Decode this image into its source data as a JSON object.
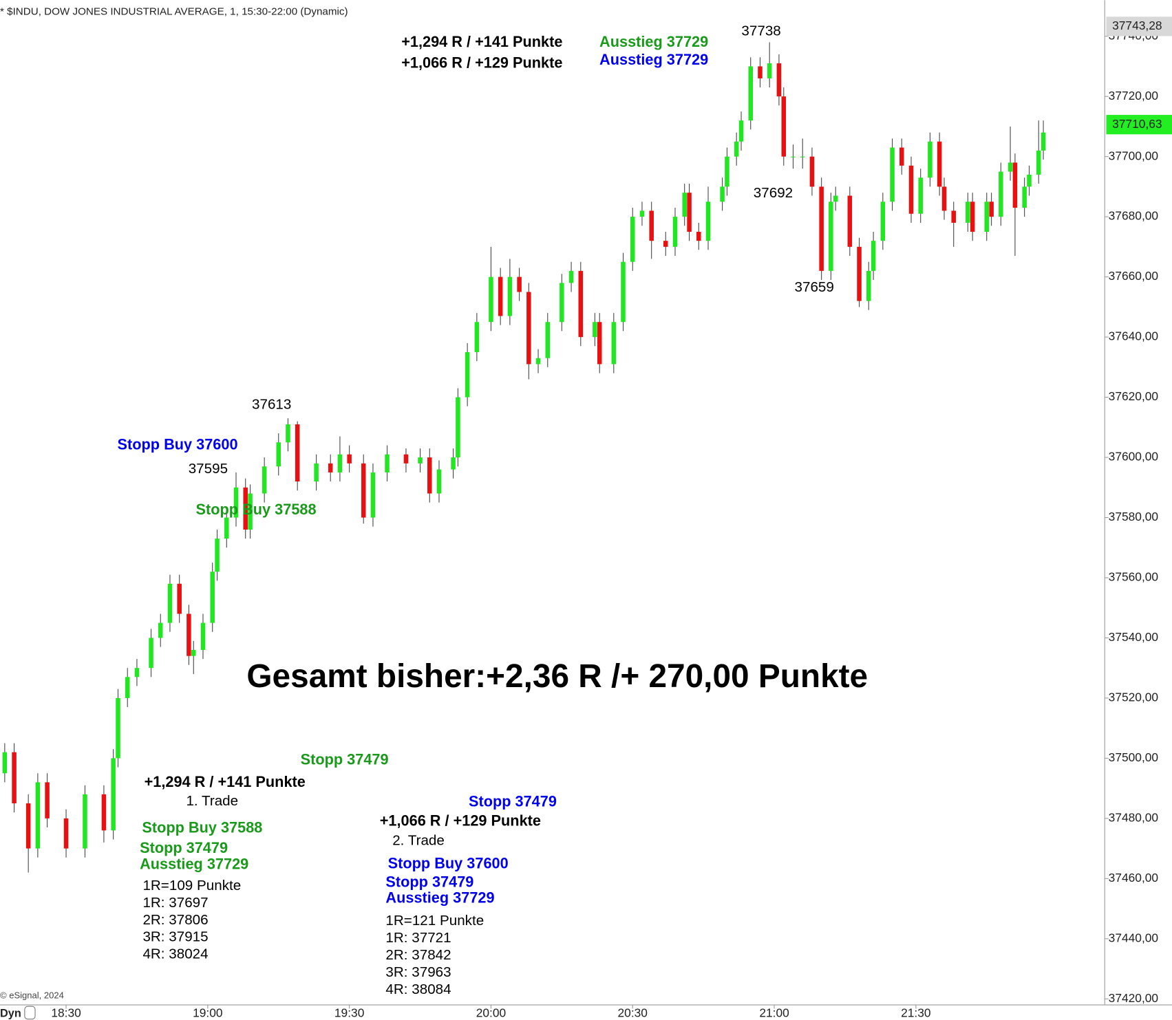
{
  "chart_data": {
    "type": "candlestick",
    "title": "* $INDU, DOW JONES INDUSTRIAL AVERAGE, 1, 15:30-22:00 (Dynamic)",
    "footer": "© eSignal, 2024",
    "mode_label": "Dyn",
    "up_color": "#22e622",
    "down_color": "#e81010",
    "xlim": [
      "18:16",
      "22:10"
    ],
    "xticks": [
      "18:30",
      "19:00",
      "19:30",
      "20:00",
      "20:30",
      "21:00",
      "21:30"
    ],
    "ylim": [
      37418,
      37752
    ],
    "yticks": [
      {
        "value": 37420,
        "label": "37420,00"
      },
      {
        "value": 37440,
        "label": "37440,00"
      },
      {
        "value": 37460,
        "label": "37460,00"
      },
      {
        "value": 37480,
        "label": "37480,00"
      },
      {
        "value": 37500,
        "label": "37500,00"
      },
      {
        "value": 37520,
        "label": "37520,00"
      },
      {
        "value": 37540,
        "label": "37540,00"
      },
      {
        "value": 37560,
        "label": "37560,00"
      },
      {
        "value": 37580,
        "label": "37580,00"
      },
      {
        "value": 37600,
        "label": "37600,00"
      },
      {
        "value": 37620,
        "label": "37620,00"
      },
      {
        "value": 37640,
        "label": "37640,00"
      },
      {
        "value": 37660,
        "label": "37660,00"
      },
      {
        "value": 37680,
        "label": "37680,00"
      },
      {
        "value": 37700,
        "label": "37700,00"
      },
      {
        "value": 37720,
        "label": "37720,00"
      },
      {
        "value": 37740,
        "label": "37740,00"
      }
    ],
    "price_marks": [
      {
        "value": 37743.28,
        "label": "37743,28",
        "color": "#d8d8d8"
      },
      {
        "value": 37710.63,
        "label": "37710,63",
        "color": "#22ee22"
      }
    ],
    "x": [
      "18:17",
      "18:19",
      "18:22",
      "18:24",
      "18:26",
      "18:30",
      "18:34",
      "18:38",
      "18:40",
      "18:41",
      "18:43",
      "18:45",
      "18:48",
      "18:50",
      "18:52",
      "18:54",
      "18:56",
      "18:57",
      "18:59",
      "19:01",
      "19:02",
      "19:04",
      "19:06",
      "19:08",
      "19:09",
      "19:12",
      "19:15",
      "19:17",
      "19:19",
      "19:23",
      "19:26",
      "19:28",
      "19:30",
      "19:33",
      "19:35",
      "19:38",
      "19:42",
      "19:45",
      "19:47",
      "19:49",
      "19:52",
      "19:53",
      "19:55",
      "19:57",
      "20:00",
      "20:02",
      "20:04",
      "20:06",
      "20:08",
      "20:10",
      "20:12",
      "20:15",
      "20:17",
      "20:19",
      "20:22",
      "20:23",
      "20:26",
      "20:28",
      "20:30",
      "20:32",
      "20:34",
      "20:37",
      "20:39",
      "20:41",
      "20:42",
      "20:44",
      "20:46",
      "20:49",
      "20:50",
      "20:52",
      "20:53",
      "20:55",
      "20:57",
      "20:59",
      "21:01",
      "21:02",
      "21:04",
      "21:06",
      "21:08",
      "21:10",
      "21:12",
      "21:13",
      "21:16",
      "21:18",
      "21:20",
      "21:21",
      "21:23",
      "21:25",
      "21:27",
      "21:29",
      "21:31",
      "21:33",
      "21:35",
      "21:36",
      "21:38",
      "21:41",
      "21:42",
      "21:45",
      "21:46",
      "21:48",
      "21:50",
      "21:51",
      "21:53",
      "21:54",
      "21:56",
      "21:57"
    ],
    "open": [
      37495,
      37502,
      37485,
      37470,
      37492,
      37480,
      37470,
      37488,
      37476,
      37500,
      37520,
      37527,
      37530,
      37540,
      37545,
      37558,
      37548,
      37534,
      37536,
      37545,
      37562,
      37573,
      37580,
      37590,
      37576,
      37588,
      37597,
      37605,
      37611,
      37592,
      37598,
      37595,
      37601,
      37598,
      37580,
      37595,
      37601,
      37598,
      37600,
      37588,
      37596,
      37600,
      37620,
      37635,
      37645,
      37660,
      37647,
      37660,
      37655,
      37631,
      37633,
      37645,
      37658,
      37662,
      37640,
      37645,
      37631,
      37645,
      37665,
      37680,
      37682,
      37672,
      37670,
      37680,
      37688,
      37675,
      37672,
      37685,
      37690,
      37700,
      37705,
      37712,
      37730,
      37726,
      37731,
      37720,
      37700,
      37700,
      37700,
      37690,
      37662,
      37685,
      37687,
      37670,
      37652,
      37662,
      37672,
      37685,
      37703,
      37697,
      37681,
      37693,
      37705,
      37690,
      37682,
      37678,
      37685,
      37675,
      37685,
      37680,
      37695,
      37698,
      37683,
      37690,
      37694,
      37702
    ],
    "high": [
      37505,
      37505,
      37488,
      37495,
      37495,
      37483,
      37491,
      37491,
      37503,
      37523,
      37530,
      37533,
      37543,
      37548,
      37561,
      37561,
      37551,
      37539,
      37548,
      37565,
      37576,
      37583,
      37595,
      37593,
      37591,
      37600,
      37608,
      37613,
      37612,
      37601,
      37601,
      37607,
      37604,
      37601,
      37598,
      37604,
      37603,
      37603,
      37603,
      37599,
      37603,
      37623,
      37638,
      37648,
      37670,
      37663,
      37666,
      37663,
      37658,
      37636,
      37648,
      37661,
      37665,
      37665,
      37648,
      37648,
      37648,
      37668,
      37683,
      37685,
      37685,
      37675,
      37683,
      37691,
      37691,
      37678,
      37690,
      37693,
      37703,
      37708,
      37715,
      37733,
      37733,
      37738,
      37734,
      37723,
      37704,
      37706,
      37703,
      37693,
      37688,
      37690,
      37690,
      37673,
      37665,
      37675,
      37688,
      37706,
      37706,
      37700,
      37696,
      37708,
      37708,
      37693,
      37685,
      37688,
      37688,
      37688,
      37688,
      37698,
      37710,
      37701,
      37693,
      37697,
      37712,
      37712
    ],
    "low": [
      37492,
      37482,
      37462,
      37467,
      37477,
      37467,
      37467,
      37472,
      37473,
      37497,
      37517,
      37524,
      37527,
      37537,
      37542,
      37545,
      37531,
      37528,
      37533,
      37542,
      37559,
      37570,
      37577,
      37573,
      37573,
      37585,
      37594,
      37602,
      37589,
      37589,
      37592,
      37592,
      37595,
      37578,
      37577,
      37592,
      37595,
      37595,
      37585,
      37585,
      37593,
      37597,
      37617,
      37632,
      37642,
      37644,
      37644,
      37652,
      37626,
      37628,
      37630,
      37642,
      37655,
      37637,
      37637,
      37628,
      37628,
      37642,
      37662,
      37677,
      37666,
      37667,
      37667,
      37677,
      37672,
      37669,
      37669,
      37682,
      37687,
      37697,
      37702,
      37709,
      37723,
      37723,
      37717,
      37697,
      37696,
      37696,
      37687,
      37659,
      37659,
      37682,
      37667,
      37650,
      37649,
      37659,
      37669,
      37682,
      37694,
      37678,
      37678,
      37690,
      37687,
      37679,
      37670,
      37675,
      37672,
      37672,
      37677,
      37677,
      37692,
      37667,
      37680,
      37687,
      37691,
      37699
    ],
    "close": [
      37502,
      37485,
      37470,
      37492,
      37480,
      37470,
      37488,
      37476,
      37500,
      37520,
      37527,
      37530,
      37540,
      37545,
      37558,
      37548,
      37534,
      37536,
      37545,
      37562,
      37573,
      37580,
      37590,
      37576,
      37588,
      37597,
      37605,
      37611,
      37592,
      37598,
      37595,
      37601,
      37598,
      37580,
      37595,
      37601,
      37598,
      37600,
      37588,
      37596,
      37600,
      37620,
      37635,
      37645,
      37660,
      37647,
      37660,
      37655,
      37631,
      37633,
      37645,
      37658,
      37662,
      37640,
      37645,
      37631,
      37645,
      37665,
      37680,
      37682,
      37672,
      37670,
      37680,
      37688,
      37675,
      37672,
      37685,
      37690,
      37700,
      37705,
      37712,
      37730,
      37726,
      37731,
      37720,
      37700,
      37700,
      37700,
      37690,
      37662,
      37685,
      37687,
      37670,
      37652,
      37662,
      37672,
      37685,
      37703,
      37697,
      37681,
      37693,
      37705,
      37690,
      37682,
      37678,
      37685,
      37675,
      37685,
      37680,
      37695,
      37698,
      37683,
      37690,
      37694,
      37702,
      37708
    ],
    "annotations": [
      "+1,294 R / +141 Punkte",
      "+1,066 R / +129 Punkte",
      "Ausstieg 37729",
      "Ausstieg 37729",
      "37738",
      "37692",
      "37659",
      "37613",
      "Stopp Buy 37600",
      "37595",
      "Stopp Buy 37588",
      "Gesamt bisher:+2,36 R /+ 270,00 Punkte",
      "Stopp 37479",
      "+1,294 R / +141 Punkte",
      "1. Trade",
      "Stopp Buy 37588",
      "Stopp 37479",
      "Ausstieg 37729",
      "1R=109 Punkte",
      "1R: 37697",
      "2R: 37806",
      "3R: 37915",
      "4R: 38024",
      "Stopp 37479",
      "+1,066 R / +129 Punkte",
      "2. Trade",
      "Stopp Buy 37600",
      "Stopp 37479",
      "Ausstieg 37729",
      "1R=121 Punkte",
      "1R: 37721",
      "2R: 37842",
      "3R: 37963",
      "4R: 38084"
    ]
  }
}
